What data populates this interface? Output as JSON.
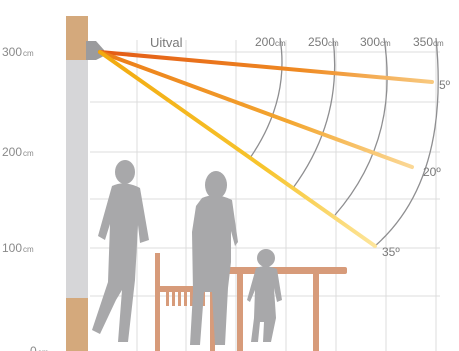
{
  "title": "Uitval",
  "y_axis": [
    {
      "value": "300",
      "unit": "cm"
    },
    {
      "value": "200",
      "unit": "cm"
    },
    {
      "value": "100",
      "unit": "cm"
    },
    {
      "value": "0",
      "unit": "cm"
    }
  ],
  "distances": [
    {
      "value": "200",
      "unit": "cm"
    },
    {
      "value": "250",
      "unit": "cm"
    },
    {
      "value": "300",
      "unit": "cm"
    },
    {
      "value": "350",
      "unit": "cm"
    }
  ],
  "beams": [
    {
      "angle_label": "5º",
      "color": "#e8761f"
    },
    {
      "angle_label": "20º",
      "color": "#f0a21e"
    },
    {
      "angle_label": "35º",
      "color": "#f5c21a"
    }
  ],
  "colors": {
    "wall": "#d6d6d8",
    "wall_accent": "#d4a97c",
    "silhouette": "#a8a8aa",
    "furniture": "#d79b7a",
    "grid": "#dcdcdc"
  }
}
